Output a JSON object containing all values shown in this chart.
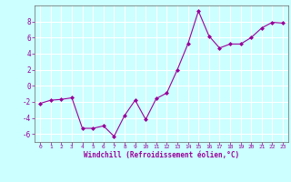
{
  "x": [
    0,
    1,
    2,
    3,
    4,
    5,
    6,
    7,
    8,
    9,
    10,
    11,
    12,
    13,
    14,
    15,
    16,
    17,
    18,
    19,
    20,
    21,
    22,
    23
  ],
  "y": [
    -2.2,
    -1.8,
    -1.7,
    -1.5,
    -5.3,
    -5.3,
    -5.0,
    -6.3,
    -3.7,
    -1.8,
    -4.2,
    -1.6,
    -0.9,
    2.0,
    5.2,
    9.3,
    6.2,
    4.7,
    5.2,
    5.2,
    6.0,
    7.2,
    7.9,
    7.8
  ],
  "line_color": "#990099",
  "marker": "D",
  "marker_size": 2,
  "bg_color": "#ccffff",
  "grid_color": "#ffffff",
  "axis_color": "#666666",
  "tick_label_color": "#990099",
  "xlabel": "Windchill (Refroidissement éolien,°C)",
  "xlabel_color": "#990099",
  "xlim": [
    -0.5,
    23.5
  ],
  "ylim": [
    -7,
    10
  ],
  "yticks": [
    -6,
    -4,
    -2,
    0,
    2,
    4,
    6,
    8
  ],
  "xticks": [
    0,
    1,
    2,
    3,
    4,
    5,
    6,
    7,
    8,
    9,
    10,
    11,
    12,
    13,
    14,
    15,
    16,
    17,
    18,
    19,
    20,
    21,
    22,
    23
  ]
}
